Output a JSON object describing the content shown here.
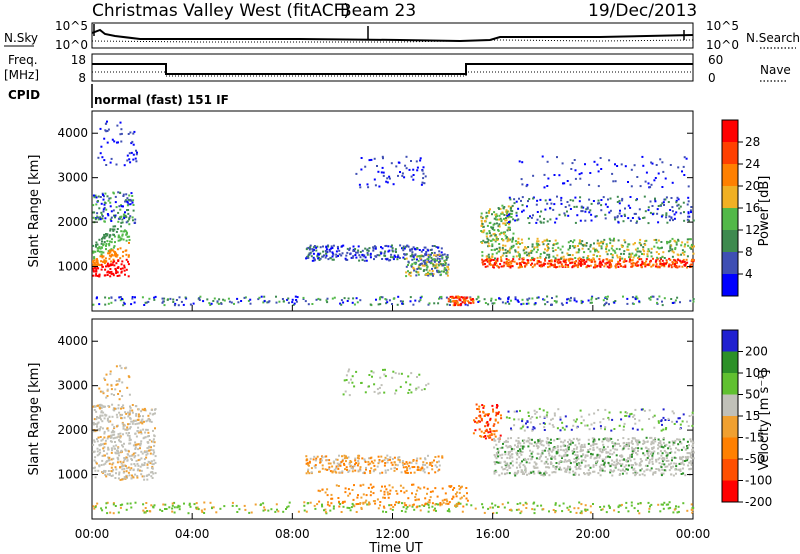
{
  "header": {
    "title": "Christmas Valley West (fitACF)",
    "beam": "Beam 23",
    "date": "19/Dec/2013"
  },
  "noise_panel": {
    "left_label": "N.Sky",
    "right_label": "N.Search",
    "left_ticks": [
      "10^5",
      "10^0"
    ],
    "right_ticks": [
      "10^5",
      "10^0"
    ]
  },
  "freq_panel": {
    "left_label_1": "Freq.",
    "left_label_2": "[MHz]",
    "right_label": "Nave",
    "left_ticks": [
      "18",
      "8"
    ],
    "right_ticks": [
      "60",
      "0"
    ]
  },
  "cpid": {
    "label": "CPID",
    "mode": "normal (fast) 151 IF"
  },
  "colors": {
    "power_scale": [
      "#0000ff",
      "#3f4fb3",
      "#3e8a4f",
      "#52b848",
      "#f0b024",
      "#ff8000",
      "#ff4000",
      "#ff0000"
    ],
    "velocity_scale": [
      "#ff0000",
      "#ff5000",
      "#ff8000",
      "#f0a030",
      "#c0c0b8",
      "#60c030",
      "#2c9028",
      "#2020d0"
    ]
  },
  "chart_data": [
    {
      "type": "heatmap",
      "panel": "power",
      "ylabel": "Slant Range [km]",
      "yticks": [
        "1000",
        "2000",
        "3000",
        "4000"
      ],
      "ylim": [
        0,
        4500
      ],
      "xlim": [
        "00:00",
        "24:00"
      ],
      "xticks": [
        "00:00",
        "04:00",
        "08:00",
        "12:00",
        "16:00",
        "20:00",
        "00:00"
      ],
      "colorbar_label": "Power [dB]",
      "colorbar_ticks": [
        "4",
        "8",
        "12",
        "16",
        "20",
        "24",
        "28"
      ],
      "colorbar_range": [
        0,
        32
      ]
    },
    {
      "type": "heatmap",
      "panel": "velocity",
      "ylabel": "Slant Range [km]",
      "yticks": [
        "1000",
        "2000",
        "3000",
        "4000"
      ],
      "ylim": [
        0,
        4500
      ],
      "xlim": [
        "00:00",
        "24:00"
      ],
      "xticks": [
        "00:00",
        "04:00",
        "08:00",
        "12:00",
        "16:00",
        "20:00",
        "00:00"
      ],
      "xlabel": "Time UT",
      "colorbar_label": "Velocity [m s⁻¹]",
      "colorbar_ticks": [
        "200",
        "100",
        "50",
        "15",
        "-15",
        "-50",
        "-100",
        "-200"
      ]
    }
  ]
}
